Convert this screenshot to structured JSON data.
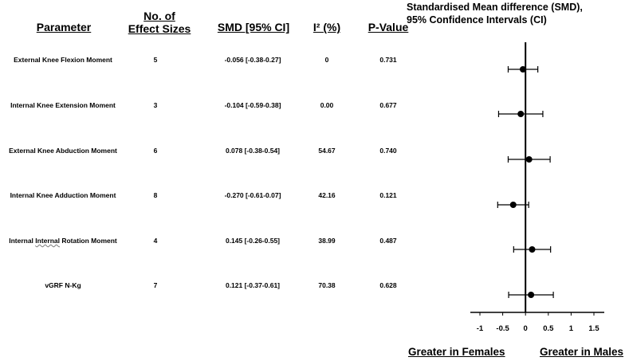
{
  "headers": {
    "parameter": "Parameter",
    "effect_sizes_line1": "No. of",
    "effect_sizes_line2": "Effect Sizes",
    "smd": "SMD [95% CI]",
    "i2": "I² (%)",
    "pvalue": "P-Value"
  },
  "rows": [
    {
      "parameter": "External Knee Flexion Moment",
      "n": "5",
      "smd": "-0.056 [-0.38-0.27]",
      "i2": "0",
      "p": "0.731"
    },
    {
      "parameter": "Internal Knee Extension Moment",
      "n": "3",
      "smd": "-0.104 [-0.59-0.38]",
      "i2": "0.00",
      "p": "0.677"
    },
    {
      "parameter": "External Knee Abduction Moment",
      "n": "6",
      "smd": "0.078 [-0.38-0.54]",
      "i2": "54.67",
      "p": "0.740"
    },
    {
      "parameter": "Internal Knee Adduction Moment",
      "n": "8",
      "smd": "-0.270 [-0.61-0.07]",
      "i2": "42.16",
      "p": "0.121"
    },
    {
      "parameter_a": "Internal ",
      "parameter_b": "Internal",
      "parameter_c": " Rotation Moment",
      "n": "4",
      "smd": "0.145 [-0.26-0.55]",
      "i2": "38.99",
      "p": "0.487"
    },
    {
      "parameter": "vGRF N-Kg",
      "n": "7",
      "smd": "0.121 [-0.37-0.61]",
      "i2": "70.38",
      "p": "0.628"
    }
  ],
  "chart_data": {
    "type": "scatter",
    "title_line1": "Standardised Mean difference (SMD),",
    "title_line2": "95% Confidence Intervals (CI)",
    "x_ticks": [
      "-1",
      "-0.5",
      "0",
      "0.5",
      "1",
      "1.5"
    ],
    "xlim": [
      -1,
      1.5
    ],
    "reference_line": 0,
    "points": [
      {
        "label": "External Knee Flexion Moment",
        "smd": -0.056,
        "lo": -0.38,
        "hi": 0.27
      },
      {
        "label": "Internal Knee Extension Moment",
        "smd": -0.104,
        "lo": -0.59,
        "hi": 0.38
      },
      {
        "label": "External Knee Abduction Moment",
        "smd": 0.078,
        "lo": -0.38,
        "hi": 0.54
      },
      {
        "label": "Internal Knee Adduction Moment",
        "smd": -0.27,
        "lo": -0.61,
        "hi": 0.07
      },
      {
        "label": "Internal Internal Rotation Moment",
        "smd": 0.145,
        "lo": -0.26,
        "hi": 0.55
      },
      {
        "label": "vGRF N-Kg",
        "smd": 0.121,
        "lo": -0.37,
        "hi": 0.61
      }
    ],
    "left_label": "Greater in Females",
    "right_label": "Greater in Males"
  }
}
